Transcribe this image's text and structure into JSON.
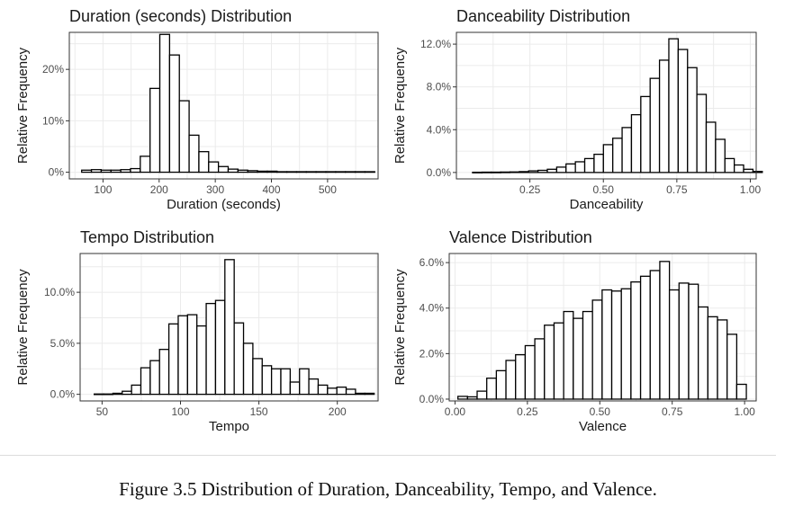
{
  "caption": "Figure 3.5 Distribution of Duration, Danceability, Tempo, and Valence.",
  "colors": {
    "bar_fill": "#ffffff",
    "bar_stroke": "#000000",
    "panel_border": "#333333",
    "grid": "#ebebeb",
    "text": "#1a1a1a",
    "tick_text": "#4d4d4d"
  },
  "chart_data": [
    {
      "type": "bar",
      "title": "Duration (seconds) Distribution",
      "xlabel": "Duration (seconds)",
      "ylabel": "Relative Frequency",
      "grid": true,
      "xlim": [
        40,
        590
      ],
      "ylim": [
        -0.013,
        0.272
      ],
      "xticks": [
        100,
        200,
        300,
        400,
        500
      ],
      "xtick_labels": [
        "100",
        "200",
        "300",
        "400",
        "500"
      ],
      "yticks": [
        0,
        0.1,
        0.2
      ],
      "ytick_labels": [
        "0%",
        "10%",
        "20%"
      ],
      "bin_start": 62,
      "bin_width": 17.4,
      "values": [
        0.004,
        0.005,
        0.004,
        0.004,
        0.005,
        0.007,
        0.031,
        0.163,
        0.268,
        0.228,
        0.139,
        0.072,
        0.04,
        0.02,
        0.011,
        0.006,
        0.004,
        0.003,
        0.002,
        0.002,
        0.001,
        0.001,
        0.001,
        0.001,
        0.001,
        0.001,
        0.001,
        0.001,
        0.001,
        0.001
      ]
    },
    {
      "type": "bar",
      "title": "Danceability Distribution",
      "xlabel": "Danceability",
      "ylabel": "Relative Frequency",
      "grid": true,
      "xlim": [
        0.0,
        1.02
      ],
      "ylim": [
        -0.006,
        0.131
      ],
      "xticks": [
        0.25,
        0.5,
        0.75,
        1.0
      ],
      "xtick_labels": [
        "0.25",
        "0.50",
        "0.75",
        "1.00"
      ],
      "yticks": [
        0,
        0.04,
        0.08,
        0.12
      ],
      "ytick_labels": [
        "0.0%",
        "4.0%",
        "8.0%",
        "12.0%"
      ],
      "bin_start": 0.055,
      "bin_width": 0.0318,
      "values": [
        0.0002,
        0.0003,
        0.0003,
        0.0004,
        0.0005,
        0.0008,
        0.0015,
        0.002,
        0.003,
        0.005,
        0.008,
        0.01,
        0.013,
        0.017,
        0.026,
        0.032,
        0.042,
        0.054,
        0.071,
        0.088,
        0.105,
        0.125,
        0.115,
        0.098,
        0.073,
        0.047,
        0.031,
        0.013,
        0.007,
        0.003,
        0.001
      ]
    },
    {
      "type": "bar",
      "title": "Tempo Distribution",
      "xlabel": "Tempo",
      "ylabel": "Relative Frequency",
      "grid": true,
      "xlim": [
        36,
        226
      ],
      "ylim": [
        -0.0065,
        0.138
      ],
      "xticks": [
        50,
        100,
        150,
        200
      ],
      "xtick_labels": [
        "50",
        "100",
        "150",
        "200"
      ],
      "yticks": [
        0,
        0.05,
        0.1
      ],
      "ytick_labels": [
        "0.0%",
        "5.0%",
        "10.0%"
      ],
      "bin_start": 45,
      "bin_width": 5.95,
      "values": [
        0.0003,
        0.0003,
        0.001,
        0.003,
        0.009,
        0.026,
        0.033,
        0.044,
        0.069,
        0.077,
        0.078,
        0.067,
        0.089,
        0.092,
        0.132,
        0.07,
        0.05,
        0.035,
        0.028,
        0.025,
        0.025,
        0.012,
        0.025,
        0.015,
        0.009,
        0.006,
        0.007,
        0.005,
        0.001,
        0.001
      ]
    },
    {
      "type": "bar",
      "title": "Valence Distribution",
      "xlabel": "Valence",
      "ylabel": "Relative Frequency",
      "grid": true,
      "xlim": [
        -0.02,
        1.04
      ],
      "ylim": [
        -0.0008,
        0.064
      ],
      "xticks": [
        0,
        0.25,
        0.5,
        0.75,
        1.0
      ],
      "xtick_labels": [
        "0.00",
        "0.25",
        "0.50",
        "0.75",
        "1.00"
      ],
      "yticks": [
        0,
        0.02,
        0.04,
        0.06
      ],
      "ytick_labels": [
        "0.0%",
        "2.0%",
        "4.0%",
        "6.0%"
      ],
      "bin_start": 0.01,
      "bin_width": 0.0332,
      "values": [
        0.0012,
        0.001,
        0.0035,
        0.0092,
        0.0125,
        0.017,
        0.0195,
        0.0235,
        0.0265,
        0.0325,
        0.0335,
        0.0385,
        0.0355,
        0.0385,
        0.0435,
        0.048,
        0.0475,
        0.0485,
        0.0515,
        0.054,
        0.0565,
        0.0605,
        0.048,
        0.051,
        0.0505,
        0.0405,
        0.0362,
        0.0348,
        0.0285,
        0.0065
      ]
    }
  ]
}
